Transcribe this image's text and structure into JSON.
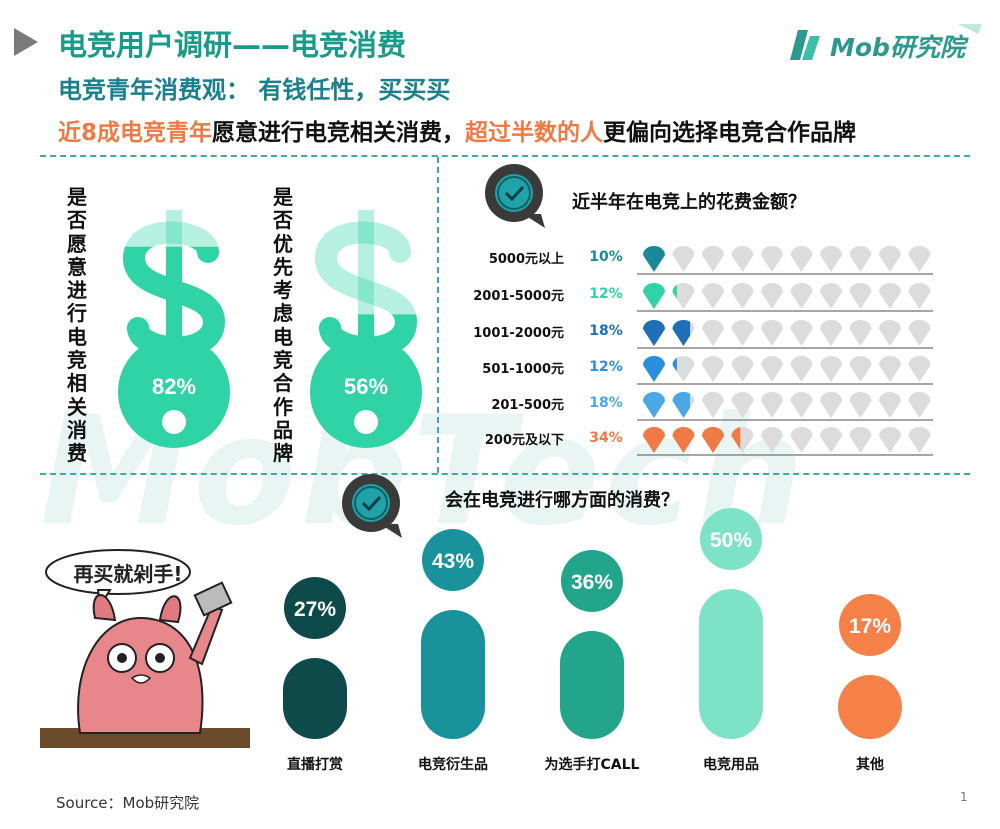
{
  "header": {
    "title": "电竞用户调研——电竞消费",
    "subtitle": "电竞青年消费观：  有钱任性，买买买",
    "logo_text": "Mob研究院"
  },
  "headline": {
    "part1": "近8成电竞青年",
    "part2": "愿意进行电竞相关消费，",
    "part3": "超过半数的人",
    "part4": "更偏向选择电竞合作品牌"
  },
  "left_panel": {
    "q1": "是否愿意进行电竞相关消费",
    "q2": "是否优先考虑电竞合作品牌"
  },
  "spend_panel": {
    "question": "近半年在电竞上的花费金额？"
  },
  "category_panel": {
    "question": "会在电竞进行哪方面的消费？",
    "speech_text": "再买就剁手!"
  },
  "footer": {
    "source": "Source：Mob研究院",
    "page": "1"
  },
  "chart_data": [
    {
      "type": "bar",
      "categories": [
        "是否愿意进行电竞相关消费",
        "是否优先考虑电竞合作品牌"
      ],
      "values": [
        82,
        56
      ],
      "value_labels": [
        "82%",
        "56%"
      ],
      "colors": [
        "#2fd3a5",
        "#2fd3a5"
      ]
    },
    {
      "type": "bar",
      "categories": [
        "5000元以上",
        "2001-5000元",
        "1001-2000元",
        "501-1000元",
        "201-500元",
        "200元及以下"
      ],
      "values": [
        10,
        12,
        18,
        12,
        18,
        34
      ],
      "value_labels": [
        "10%",
        "12%",
        "18%",
        "12%",
        "18%",
        "34%"
      ],
      "colors": [
        "#1a8a9a",
        "#2fd3a5",
        "#1e6fb8",
        "#2a8de0",
        "#4ba8e6",
        "#f07a46"
      ]
    },
    {
      "type": "bar",
      "categories": [
        "直播打赏",
        "电竞衍生品",
        "为选手打CALL",
        "电竞用品",
        "其他"
      ],
      "values": [
        27,
        43,
        36,
        50,
        17
      ],
      "value_labels": [
        "27%",
        "43%",
        "36%",
        "50%",
        "17%"
      ],
      "colors": [
        "#0e4a4a",
        "#1a929c",
        "#22a58a",
        "#7ee3c6",
        "#f58148"
      ]
    }
  ]
}
